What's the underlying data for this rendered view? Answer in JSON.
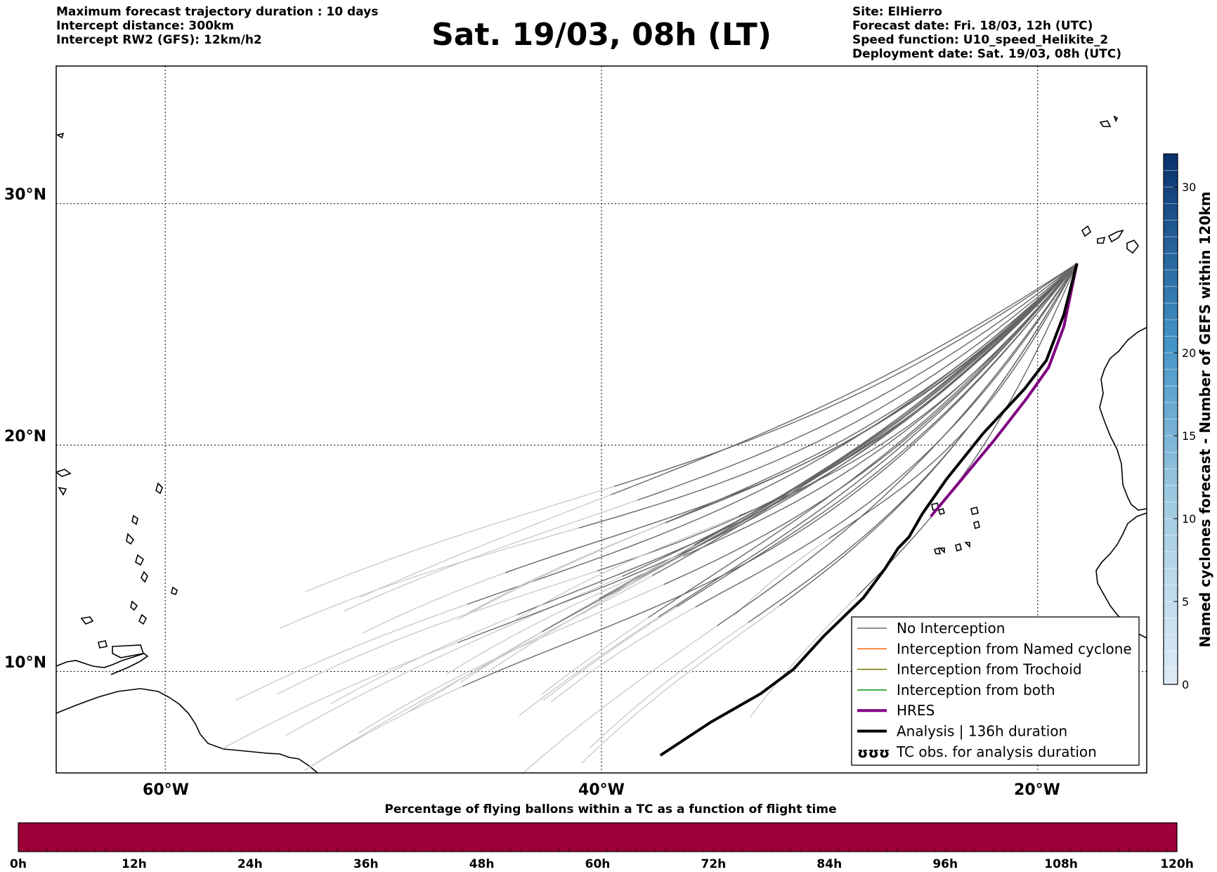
{
  "header": {
    "left": [
      "Maximum forecast trajectory duration : 10 days",
      "Intercept distance: 300km",
      "Intercept RW2 (GFS):  12km/h2"
    ],
    "title": "Sat. 19/03, 08h (LT)",
    "right": [
      "Site: ElHierro",
      "Forecast date: Fri. 18/03, 12h (UTC)",
      "Speed function: U10_speed_Helikite_2",
      "Deployment date: Sat. 19/03, 08h (UTC)"
    ]
  },
  "map": {
    "lat_labels": [
      "30°N",
      "20°N",
      "10°N"
    ],
    "lon_labels": [
      "60°W",
      "40°W",
      "20°W"
    ],
    "extent": {
      "lon_min": -65,
      "lon_max": -15,
      "lat_min": 5.4,
      "lat_max": 35.3
    },
    "gridlines": {
      "lats": [
        30,
        20,
        10
      ],
      "lons": [
        -60,
        -40,
        -20
      ]
    }
  },
  "legend": {
    "entries": [
      {
        "label": "No Interception",
        "color": "#666666",
        "style": "thin"
      },
      {
        "label": "Interception from Named cyclone",
        "color": "#ff6a1a",
        "style": "thin"
      },
      {
        "label": "Interception from Trochoid",
        "color": "#7a7a00",
        "style": "thin"
      },
      {
        "label": "Interception from both",
        "color": "#1a9a1a",
        "style": "thin"
      },
      {
        "label": "HRES",
        "color": "#800080",
        "style": "thick"
      },
      {
        "label": "Analysis | 136h duration",
        "color": "#000000",
        "style": "thick"
      },
      {
        "label": "TC obs. for analysis duration",
        "color": "#000000",
        "style": "symbol",
        "symbol": "ʊʊʊ"
      }
    ]
  },
  "right_colorbar": {
    "label": "Named cyclones forecast - Number of GEFS within 120km",
    "ticks": [
      "30",
      "20",
      "15",
      "10",
      "5",
      "0"
    ],
    "tick_values": [
      30,
      20,
      15,
      10,
      5,
      0
    ],
    "min": 0,
    "max": 32,
    "color_low": "#deebf7",
    "color_high": "#08306b"
  },
  "bottom_colorbar": {
    "title": "Percentage of flying ballons within a TC as a function of flight time",
    "ticks": [
      "0h",
      "12h",
      "24h",
      "36h",
      "48h",
      "60h",
      "72h",
      "84h",
      "96h",
      "108h",
      "120h"
    ],
    "color": "#9e003a"
  },
  "chart_data": {
    "type": "line",
    "title": "Sat. 19/03, 08h (LT)",
    "xlabel": "",
    "ylabel": "",
    "xlim": [
      -65,
      -15
    ],
    "ylim": [
      5.4,
      35.3
    ],
    "launch_site": {
      "lon": -18.2,
      "lat": 27.6
    },
    "series": [
      {
        "name": "HRES",
        "color": "#800080",
        "points": [
          [
            -18.2,
            27.6
          ],
          [
            -18.8,
            25.0
          ],
          [
            -19.5,
            23.3
          ],
          [
            -20.5,
            22.0
          ],
          [
            -22.0,
            20.2
          ],
          [
            -23.5,
            18.5
          ],
          [
            -24.9,
            16.9
          ]
        ]
      },
      {
        "name": "Analysis | 136h duration",
        "color": "#000000",
        "points": [
          [
            -18.2,
            27.6
          ],
          [
            -18.8,
            25.5
          ],
          [
            -19.6,
            23.6
          ],
          [
            -20.6,
            22.4
          ],
          [
            -22.5,
            20.5
          ],
          [
            -24.2,
            18.5
          ],
          [
            -25.3,
            17.0
          ],
          [
            -25.9,
            16.0
          ],
          [
            -26.4,
            15.5
          ],
          [
            -27.0,
            14.6
          ],
          [
            -28.0,
            13.3
          ],
          [
            -29.8,
            11.6
          ],
          [
            -31.2,
            10.1
          ],
          [
            -32.7,
            9.0
          ],
          [
            -35.0,
            7.7
          ],
          [
            -37.3,
            6.2
          ]
        ]
      }
    ],
    "ensemble_count": 30
  }
}
